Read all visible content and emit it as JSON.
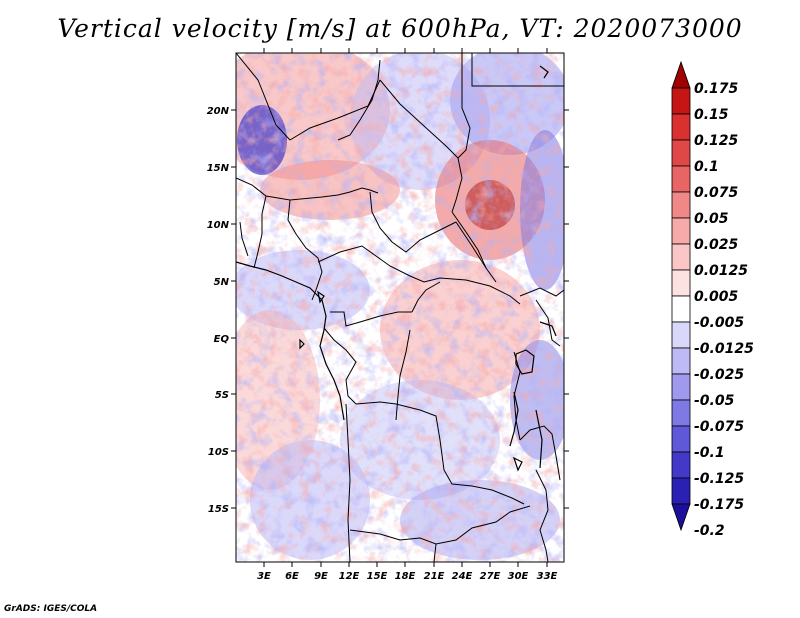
{
  "title": "Vertical velocity [m/s] at 600hPa, VT: 2020073000",
  "credit": "GrADS: IGES/COLA",
  "map": {
    "lat_labels": [
      "20N",
      "15N",
      "10N",
      "5N",
      "EQ",
      "5S",
      "10S",
      "15S"
    ],
    "lon_labels": [
      "3E",
      "6E",
      "9E",
      "12E",
      "15E",
      "18E",
      "21E",
      "24E",
      "27E",
      "30E",
      "33E"
    ]
  },
  "colorbar": {
    "labels": [
      "0.175",
      "0.15",
      "0.125",
      "0.1",
      "0.075",
      "0.05",
      "0.025",
      "0.0125",
      "0.005",
      "-0.005",
      "-0.0125",
      "-0.025",
      "-0.05",
      "-0.075",
      "-0.1",
      "-0.125",
      "-0.175",
      "-0.2"
    ],
    "colors": [
      "#a10000",
      "#c51515",
      "#d93030",
      "#e04848",
      "#e86565",
      "#f08888",
      "#f6aaaa",
      "#fac6c6",
      "#fde2e2",
      "#ffffff",
      "#d9d8fa",
      "#bdbaf5",
      "#9f9aee",
      "#7f79e4",
      "#5f58d8",
      "#4239c8",
      "#2a20b4",
      "#1c0f9a"
    ]
  }
}
